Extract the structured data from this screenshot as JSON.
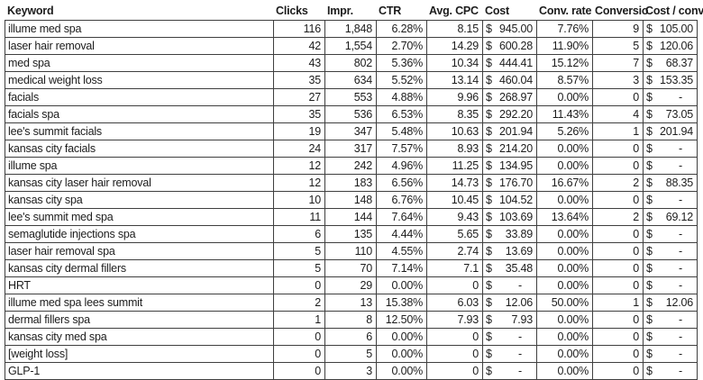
{
  "table": {
    "currency_symbol": "$",
    "columns": [
      {
        "label": "Keyword",
        "type": "text"
      },
      {
        "label": "Clicks",
        "type": "num"
      },
      {
        "label": "Impr.",
        "type": "num"
      },
      {
        "label": "CTR",
        "type": "num"
      },
      {
        "label": "Avg. CPC",
        "type": "num"
      },
      {
        "label": "Cost",
        "type": "cur"
      },
      {
        "label": "Conv. rate",
        "type": "num"
      },
      {
        "label": "Conversio",
        "type": "num"
      },
      {
        "label": "Cost / conv.",
        "type": "cur"
      }
    ],
    "rows": [
      [
        "illume med spa",
        "116",
        "1,848",
        "6.28%",
        "8.15",
        "945.00",
        "7.76%",
        "9",
        "105.00"
      ],
      [
        "laser hair removal",
        "42",
        "1,554",
        "2.70%",
        "14.29",
        "600.28",
        "11.90%",
        "5",
        "120.06"
      ],
      [
        "med spa",
        "43",
        "802",
        "5.36%",
        "10.34",
        "444.41",
        "15.12%",
        "7",
        "68.37"
      ],
      [
        "medical weight loss",
        "35",
        "634",
        "5.52%",
        "13.14",
        "460.04",
        "8.57%",
        "3",
        "153.35"
      ],
      [
        "facials",
        "27",
        "553",
        "4.88%",
        "9.96",
        "268.97",
        "0.00%",
        "0",
        "-"
      ],
      [
        "facials spa",
        "35",
        "536",
        "6.53%",
        "8.35",
        "292.20",
        "11.43%",
        "4",
        "73.05"
      ],
      [
        "lee's summit facials",
        "19",
        "347",
        "5.48%",
        "10.63",
        "201.94",
        "5.26%",
        "1",
        "201.94"
      ],
      [
        "kansas city facials",
        "24",
        "317",
        "7.57%",
        "8.93",
        "214.20",
        "0.00%",
        "0",
        "-"
      ],
      [
        "illume spa",
        "12",
        "242",
        "4.96%",
        "11.25",
        "134.95",
        "0.00%",
        "0",
        "-"
      ],
      [
        "kansas city laser hair removal",
        "12",
        "183",
        "6.56%",
        "14.73",
        "176.70",
        "16.67%",
        "2",
        "88.35"
      ],
      [
        "kansas city spa",
        "10",
        "148",
        "6.76%",
        "10.45",
        "104.52",
        "0.00%",
        "0",
        "-"
      ],
      [
        "lee's summit med spa",
        "11",
        "144",
        "7.64%",
        "9.43",
        "103.69",
        "13.64%",
        "2",
        "69.12"
      ],
      [
        "semaglutide injections spa",
        "6",
        "135",
        "4.44%",
        "5.65",
        "33.89",
        "0.00%",
        "0",
        "-"
      ],
      [
        "laser hair removal spa",
        "5",
        "110",
        "4.55%",
        "2.74",
        "13.69",
        "0.00%",
        "0",
        "-"
      ],
      [
        "kansas city dermal fillers",
        "5",
        "70",
        "7.14%",
        "7.1",
        "35.48",
        "0.00%",
        "0",
        "-"
      ],
      [
        "HRT",
        "0",
        "29",
        "0.00%",
        "0",
        "-",
        "0.00%",
        "0",
        "-"
      ],
      [
        "illume med spa lees summit",
        "2",
        "13",
        "15.38%",
        "6.03",
        "12.06",
        "50.00%",
        "1",
        "12.06"
      ],
      [
        "dermal fillers spa",
        "1",
        "8",
        "12.50%",
        "7.93",
        "7.93",
        "0.00%",
        "0",
        "-"
      ],
      [
        "kansas city med spa",
        "0",
        "6",
        "0.00%",
        "0",
        "-",
        "0.00%",
        "0",
        "-"
      ],
      [
        "[weight loss]",
        "0",
        "5",
        "0.00%",
        "0",
        "-",
        "0.00%",
        "0",
        "-"
      ],
      [
        "GLP-1",
        "0",
        "3",
        "0.00%",
        "0",
        "-",
        "0.00%",
        "0",
        "-"
      ]
    ]
  }
}
